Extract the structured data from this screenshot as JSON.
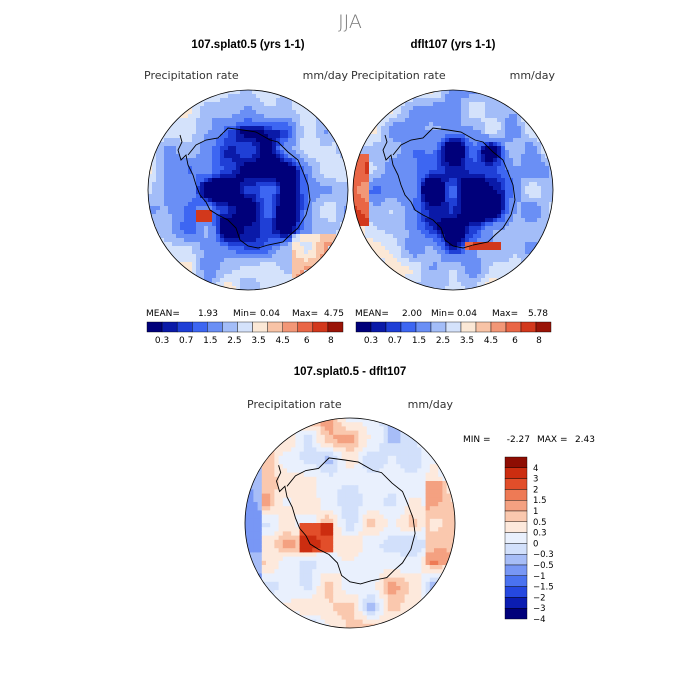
{
  "season": "JJA",
  "colors": {
    "outline": "#000000",
    "abs_scale": [
      "#00007a",
      "#0a1aa8",
      "#1f3fd6",
      "#3d66f2",
      "#6a8ff5",
      "#a3bdf8",
      "#d4e2fb",
      "#fbe8d6",
      "#f8c3a6",
      "#f29777",
      "#e96646",
      "#d2381c",
      "#9a1407"
    ],
    "diff_scale": [
      "#00007a",
      "#0b1db2",
      "#2548e0",
      "#4a72f0",
      "#7897f5",
      "#a7bdf7",
      "#d2e0fb",
      "#e9f0fd",
      "#fde9dc",
      "#fac8ae",
      "#f4a181",
      "#ee7a55",
      "#e24e2a",
      "#cc2d10",
      "#8e0d03"
    ]
  },
  "chart_data": [
    {
      "type": "heatmap",
      "title": "107.splat0.5 (yrs 1-1)",
      "variable": "Precipitation rate",
      "units": "mm/day",
      "projection": "south polar stereographic",
      "stats": {
        "mean_label": "MEAN=",
        "mean": "1.93",
        "min_label": "Min=",
        "min": "0.04",
        "max_label": "Max=",
        "max": "4.75"
      },
      "colorbar_ticks": [
        "0.3",
        "0.7",
        "1.5",
        "2.5",
        "3.5",
        "4.5",
        "6",
        "8"
      ]
    },
    {
      "type": "heatmap",
      "title": "dflt107 (yrs 1-1)",
      "variable": "Precipitation rate",
      "units": "mm/day",
      "projection": "south polar stereographic",
      "stats": {
        "mean_label": "MEAN=",
        "mean": "2.00",
        "min_label": "Min=",
        "min": "0.04",
        "max_label": "Max=",
        "max": "5.78"
      },
      "colorbar_ticks": [
        "0.3",
        "0.7",
        "1.5",
        "2.5",
        "3.5",
        "4.5",
        "6",
        "8"
      ]
    },
    {
      "type": "heatmap",
      "title": "107.splat0.5 - dflt107",
      "variable": "Precipitation rate",
      "units": "mm/day",
      "projection": "south polar stereographic",
      "stats": {
        "min_label": "MIN =",
        "min": "-2.27",
        "max_label": "MAX =",
        "max": "2.43"
      },
      "colorbar_ticks": [
        "4",
        "3",
        "2",
        "1.5",
        "1",
        "0.5",
        "0.3",
        "0",
        "−0.3",
        "−0.5",
        "−1",
        "−1.5",
        "−2",
        "−3",
        "−4"
      ]
    }
  ]
}
